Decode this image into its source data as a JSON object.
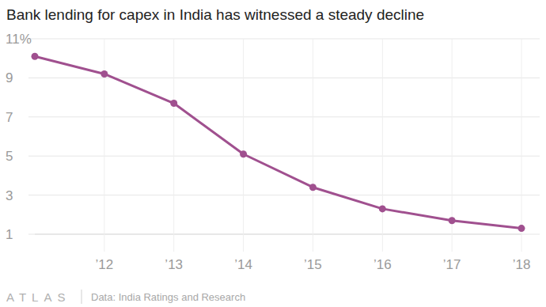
{
  "chart_data": {
    "type": "line",
    "title": "Bank lending for capex in India has witnessed a steady decline",
    "source": "Data: India Ratings and Research",
    "brand": "ATLAS",
    "x": [
      2011,
      2012,
      2013,
      2014,
      2015,
      2016,
      2017,
      2018
    ],
    "values": [
      10.1,
      9.2,
      7.7,
      5.1,
      3.4,
      2.3,
      1.7,
      1.3
    ],
    "color": "#a0508f",
    "marker": "circle",
    "xlim": [
      2011,
      2018
    ],
    "xticks": [
      {
        "value": 2012,
        "label": "’12"
      },
      {
        "value": 2013,
        "label": "’13"
      },
      {
        "value": 2014,
        "label": "’14"
      },
      {
        "value": 2015,
        "label": "’15"
      },
      {
        "value": 2016,
        "label": "’16"
      },
      {
        "value": 2017,
        "label": "’17"
      },
      {
        "value": 2018,
        "label": "’18"
      }
    ],
    "ylim": [
      1,
      11
    ],
    "yticks": [
      1,
      3,
      5,
      7,
      9,
      {
        "value": 11,
        "label": "11%"
      }
    ],
    "grid": true
  }
}
